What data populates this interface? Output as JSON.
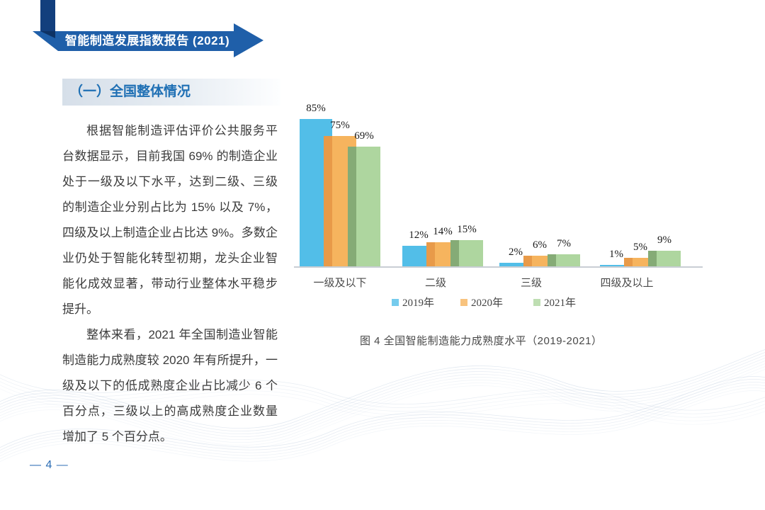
{
  "header": {
    "banner_title": "智能制造发展指数报告 (2021)"
  },
  "section": {
    "heading": "（一）全国整体情况"
  },
  "paragraphs": [
    "根据智能制造评估评价公共服务平台数据显示，目前我国 69% 的制造企业处于一级及以下水平，达到二级、三级的制造企业分别占比为 15% 以及 7%，四级及以上制造企业占比达 9%。多数企业仍处于智能化转型初期，龙头企业智能化成效显著，带动行业整体水平稳步提升。",
    "整体来看，2021 年全国制造业智能制造能力成熟度较 2020 年有所提升，一级及以下的低成熟度企业占比减少 6 个百分点，三级以上的高成熟度企业数量增加了 5 个百分点。"
  ],
  "chart_data": {
    "type": "bar",
    "title": "全国智能制造能力成熟度水平（2019-2021）",
    "categories": [
      "一级及以下",
      "二级",
      "三级",
      "四级及以上"
    ],
    "series": [
      {
        "name": "2019年",
        "color": "#52bee8",
        "values": [
          85,
          12,
          2,
          1
        ]
      },
      {
        "name": "2020年",
        "color": "#f6b45e",
        "edge_color": "#e89a49",
        "values": [
          75,
          14,
          6,
          5
        ]
      },
      {
        "name": "2021年",
        "color": "#aed69f",
        "edge_color": "#85ab76",
        "values": [
          69,
          15,
          7,
          9
        ]
      }
    ],
    "value_suffix": "%",
    "ylim": [
      0,
      90
    ],
    "grid": false,
    "legend_position": "bottom"
  },
  "figure": {
    "caption": "图 4  全国智能制造能力成熟度水平（2019-2021）"
  },
  "footer": {
    "page_number": "— 4 —"
  },
  "colors": {
    "banner_blue": "#1f5fa9",
    "banner_navy": "#123f7d",
    "heading_blue": "#1e6fb4",
    "page_number_blue": "#2c6db4",
    "axis_gray": "#c9ced4",
    "wave_blue": "#b8c7db"
  }
}
